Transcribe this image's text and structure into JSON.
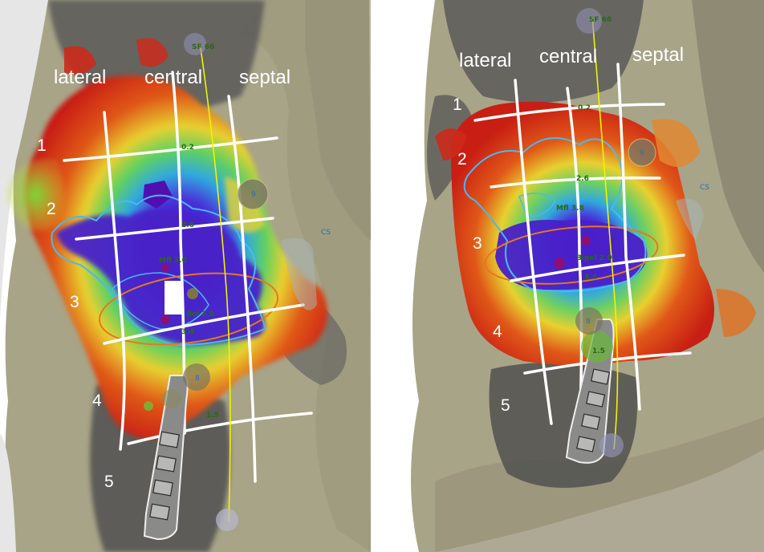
{
  "panels": [
    {
      "id": "left",
      "columns": [
        "lateral",
        "central",
        "septal"
      ],
      "rows": [
        "1",
        "2",
        "3",
        "4",
        "5"
      ],
      "annotations": {
        "sf": "SF 66",
        "mf": "Mfl 3.0",
        "bi": "Bol 2.0",
        "cs": "CS",
        "g9": "9",
        "g8": "8",
        "t1": "0.2",
        "t2": "2.6",
        "t3": "3.4",
        "t4": "1.5"
      }
    },
    {
      "id": "right",
      "columns": [
        "lateral",
        "central",
        "septal"
      ],
      "rows": [
        "1",
        "2",
        "3",
        "4",
        "5"
      ],
      "annotations": {
        "sf": "SF 66",
        "mf": "Mfl 3.8",
        "bi": "Bipol 2.0",
        "cs": "CS",
        "g9": "9",
        "g8": "8",
        "t1": "0.2",
        "t2": "2.6",
        "t3": "3.4",
        "t4": "1.5"
      }
    }
  ],
  "colors": {
    "tissue": "#a8a488",
    "shadow": "#5a5a58",
    "red": "#d42a1c",
    "orange": "#f08a1c",
    "yellow": "#e8d832",
    "green": "#5ec83a",
    "cyan": "#38c8e0",
    "blue": "#2a2ad8",
    "purple": "#6a18b8",
    "lines": "#ffffff",
    "catheter_path": "#f2f200",
    "ablation_ring": "#e87820"
  }
}
